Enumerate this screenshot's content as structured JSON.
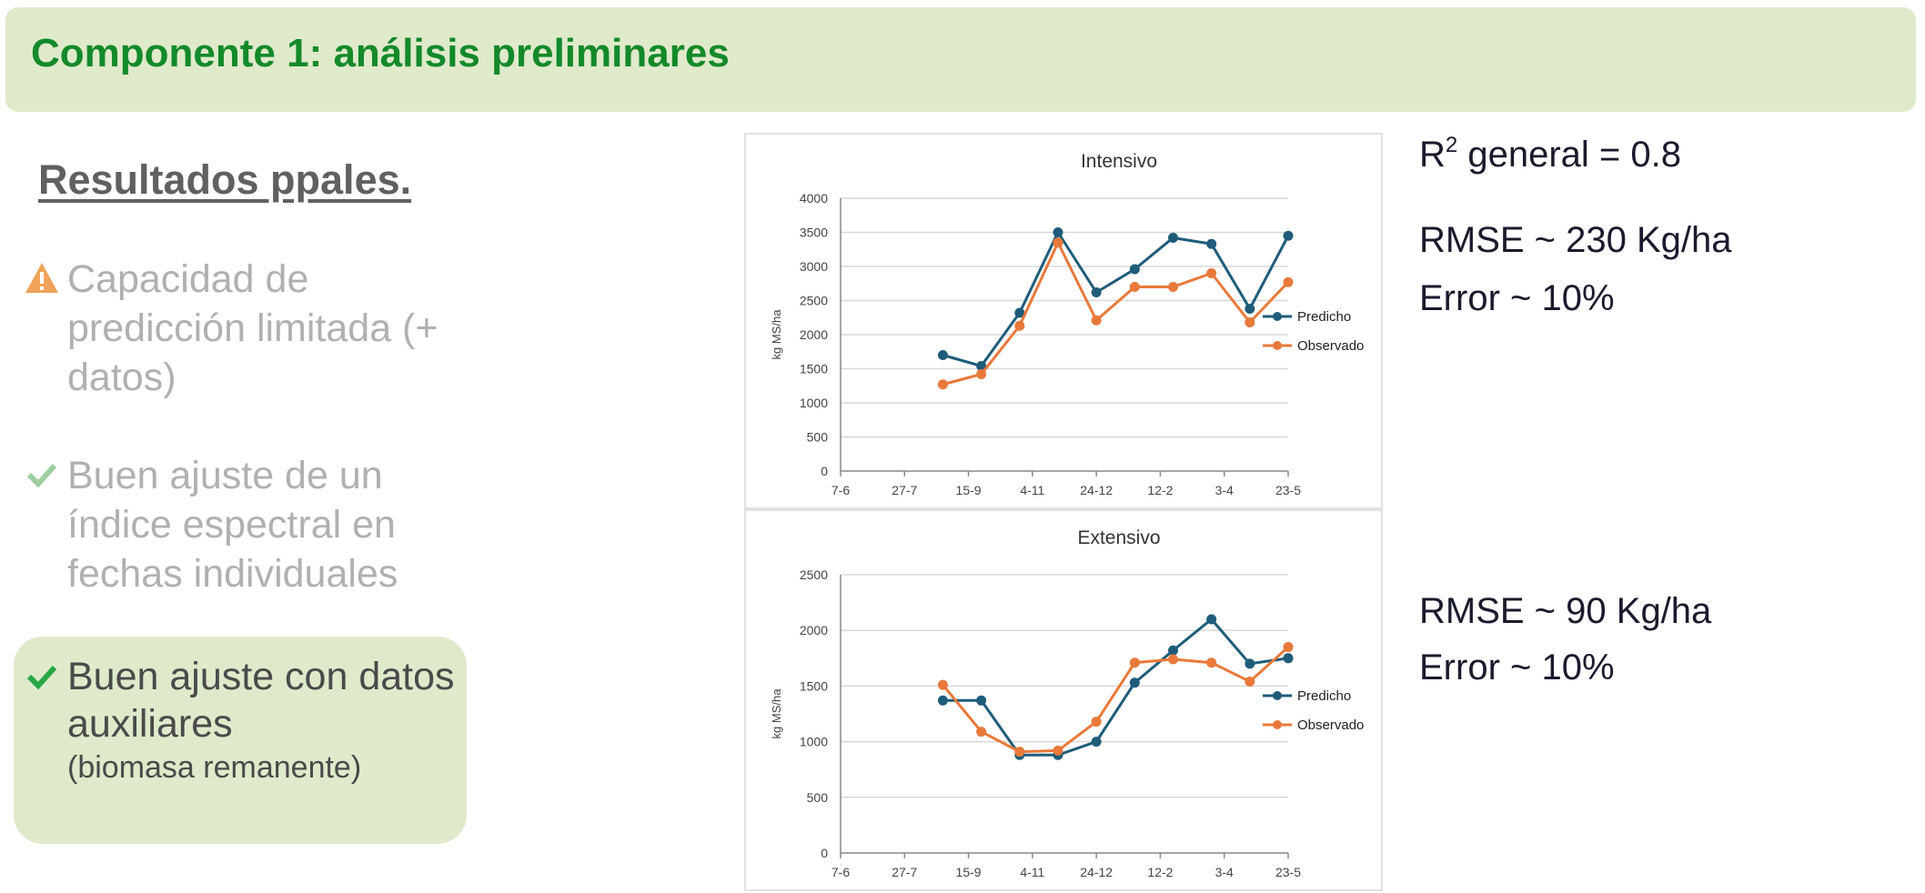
{
  "header": {
    "title": "Componente 1: análisis preliminares"
  },
  "section_title": "Resultados ppales.",
  "bullets": [
    {
      "icon": "warning-icon",
      "text": "Capacidad de predicción limitada (+ datos)"
    },
    {
      "icon": "check-icon",
      "text": "Buen ajuste de un índice espectral en fechas individuales"
    },
    {
      "icon": "check-icon",
      "text": "Buen ajuste con datos auxiliares",
      "subtext": "(biomasa remanente)"
    }
  ],
  "stats": {
    "r2_prefix": "R",
    "r2_sup": "2",
    "r2_rest": " general = 0.8",
    "rmse_1": "RMSE ~ 230 Kg/ha",
    "error_1": "Error ~ 10%",
    "rmse_2": "RMSE ~ 90 Kg/ha",
    "error_2": "Error ~ 10%"
  },
  "colors": {
    "header_bg": "#dfeacb",
    "header_text": "#13892a",
    "predicho": "#1f5c7a",
    "observado": "#e8793a",
    "warning": "#f0a35a",
    "check_faded": "#9ecfa0",
    "check": "#28a745"
  },
  "chart_data": [
    {
      "type": "line",
      "title": "Intensivo",
      "ylabel": "kg MS/ha",
      "xlabel": "",
      "x_ticks": [
        "7-6",
        "27-7",
        "15-9",
        "4-11",
        "24-12",
        "12-2",
        "3-4",
        "23-5"
      ],
      "y_ticks": [
        "0",
        "500",
        "1000",
        "1500",
        "2000",
        "2500",
        "3000",
        "3500",
        "4000"
      ],
      "ylim": [
        0,
        4000
      ],
      "grid": true,
      "legend": "right",
      "series": [
        {
          "name": "Predicho",
          "x": [
            1.6,
            2.2,
            2.8,
            3.4,
            4.0,
            4.6,
            5.2,
            5.8,
            6.4,
            7.0
          ],
          "values": [
            1700,
            1540,
            2320,
            3500,
            2620,
            2960,
            3420,
            3330,
            2380,
            3450
          ]
        },
        {
          "name": "Observado",
          "x": [
            1.6,
            2.2,
            2.8,
            3.4,
            4.0,
            4.6,
            5.2,
            5.8,
            6.4,
            7.0
          ],
          "values": [
            1270,
            1420,
            2130,
            3350,
            2210,
            2700,
            2700,
            2900,
            2180,
            2770
          ]
        }
      ]
    },
    {
      "type": "line",
      "title": "Extensivo",
      "ylabel": "kg MS/ha",
      "xlabel": "",
      "x_ticks": [
        "7-6",
        "27-7",
        "15-9",
        "4-11",
        "24-12",
        "12-2",
        "3-4",
        "23-5"
      ],
      "y_ticks": [
        "0",
        "500",
        "1000",
        "1500",
        "2000",
        "2500"
      ],
      "ylim": [
        0,
        2500
      ],
      "grid": true,
      "legend": "right",
      "series": [
        {
          "name": "Predicho",
          "x": [
            1.6,
            2.2,
            2.8,
            3.4,
            4.0,
            4.6,
            5.2,
            5.8,
            6.4,
            7.0
          ],
          "values": [
            1370,
            1370,
            880,
            880,
            1000,
            1530,
            1820,
            2100,
            1700,
            1750
          ]
        },
        {
          "name": "Observado",
          "x": [
            1.6,
            2.2,
            2.8,
            3.4,
            4.0,
            4.6,
            5.2,
            5.8,
            6.4,
            7.0
          ],
          "values": [
            1510,
            1090,
            910,
            920,
            1180,
            1710,
            1740,
            1710,
            1540,
            1850
          ]
        }
      ]
    }
  ]
}
